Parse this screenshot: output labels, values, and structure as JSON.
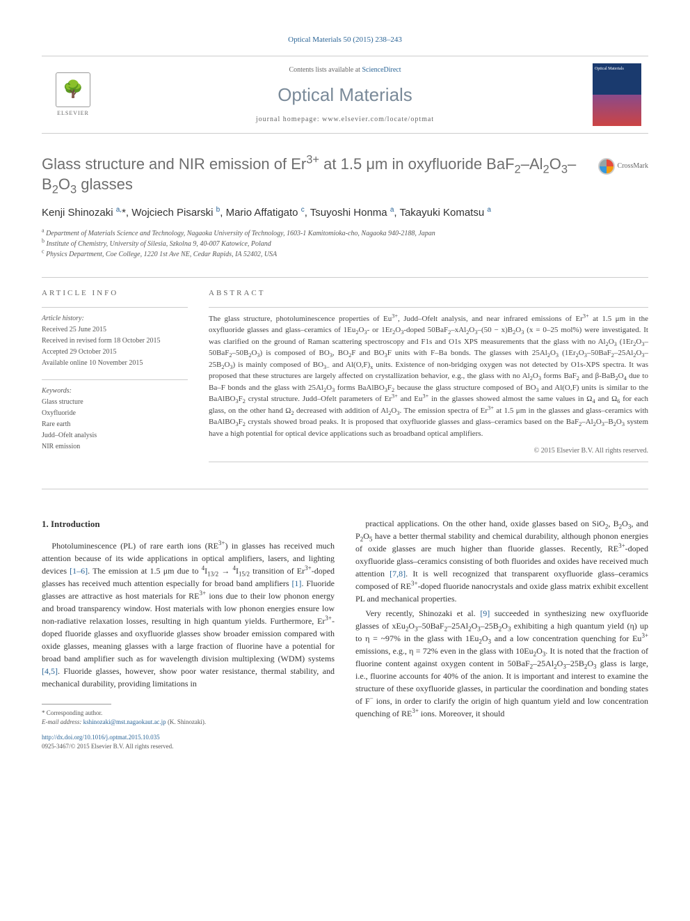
{
  "journal_ref": "Optical Materials 50 (2015) 238–243",
  "header": {
    "contents_prefix": "Contents lists available at ",
    "sciencedirect": "ScienceDirect",
    "journal_name": "Optical Materials",
    "homepage_prefix": "journal homepage: ",
    "homepage_url": "www.elsevier.com/locate/optmat",
    "elsevier": "ELSEVIER"
  },
  "crossmark": "CrossMark",
  "title_html": "Glass structure and NIR emission of Er<sup>3+</sup> at 1.5 μm in oxyfluoride BaF<sub>2</sub>–Al<sub>2</sub>O<sub>3</sub>–B<sub>2</sub>O<sub>3</sub> glasses",
  "authors_html": "Kenji Shinozaki <sup>a,</sup>*, Wojciech Pisarski <sup>b</sup>, Mario Affatigato <sup>c</sup>, Tsuyoshi Honma <sup>a</sup>, Takayuki Komatsu <sup>a</sup>",
  "affiliations": [
    {
      "sup": "a",
      "text": "Department of Materials Science and Technology, Nagaoka University of Technology, 1603-1 Kamitomioka-cho, Nagaoka 940-2188, Japan"
    },
    {
      "sup": "b",
      "text": "Institute of Chemistry, University of Silesia, Szkolna 9, 40-007 Katowice, Poland"
    },
    {
      "sup": "c",
      "text": "Physics Department, Coe College, 1220 1st Ave NE, Cedar Rapids, IA 52402, USA"
    }
  ],
  "article_info": {
    "heading": "ARTICLE INFO",
    "history_label": "Article history:",
    "history": [
      "Received 25 June 2015",
      "Received in revised form 18 October 2015",
      "Accepted 29 October 2015",
      "Available online 10 November 2015"
    ],
    "keywords_label": "Keywords:",
    "keywords": [
      "Glass structure",
      "Oxyfluoride",
      "Rare earth",
      "Judd–Ofelt analysis",
      "NIR emission"
    ]
  },
  "abstract": {
    "heading": "ABSTRACT",
    "text_html": "The glass structure, photoluminescence properties of Eu<sup>3+</sup>, Judd–Ofelt analysis, and near infrared emissions of Er<sup>3+</sup> at 1.5 μm in the oxyfluoride glasses and glass–ceramics of 1Eu<sub>2</sub>O<sub>3</sub>- or 1Er<sub>2</sub>O<sub>3</sub>-doped 50BaF<sub>2</sub>–xAl<sub>2</sub>O<sub>3</sub>–(50 − x)B<sub>2</sub>O<sub>3</sub> (x = 0–25 mol%) were investigated. It was clarified on the ground of Raman scattering spectroscopy and F1s and O1s XPS measurements that the glass with no Al<sub>2</sub>O<sub>3</sub> (1Er<sub>2</sub>O<sub>3</sub>–50BaF<sub>2</sub>–50B<sub>2</sub>O<sub>3</sub>) is composed of BO<sub>3</sub>, BO<sub>2</sub>F and BO<sub>3</sub>F units with F–Ba bonds. The glasses with 25Al<sub>2</sub>O<sub>3</sub> (1Er<sub>2</sub>O<sub>3</sub>–50BaF<sub>2</sub>–25Al<sub>2</sub>O<sub>3</sub>–25B<sub>2</sub>O<sub>3</sub>) is mainly composed of BO<sub>3−</sub> and Al(O,F)<sub>x</sub> units. Existence of non-bridging oxygen was not detected by O1s-XPS spectra. It was proposed that these structures are largely affected on crystallization behavior, e.g., the glass with no Al<sub>2</sub>O<sub>3</sub> forms BaF<sub>2</sub> and β-BaB<sub>2</sub>O<sub>4</sub> due to Ba–F bonds and the glass with 25Al<sub>2</sub>O<sub>3</sub> forms BaAlBO<sub>3</sub>F<sub>2</sub> because the glass structure composed of BO<sub>3</sub> and Al(O,F) units is similar to the BaAlBO<sub>3</sub>F<sub>2</sub> crystal structure. Judd–Ofelt parameters of Er<sup>3+</sup> and Eu<sup>3+</sup> in the glasses showed almost the same values in Ω<sub>4</sub> and Ω<sub>6</sub> for each glass, on the other hand Ω<sub>2</sub> decreased with addition of Al<sub>2</sub>O<sub>3</sub>. The emission spectra of Er<sup>3+</sup> at 1.5 μm in the glasses and glass–ceramics with BaAlBO<sub>3</sub>F<sub>2</sub> crystals showed broad peaks. It is proposed that oxyfluoride glasses and glass–ceramics based on the BaF<sub>2</sub>–Al<sub>2</sub>O<sub>3</sub>–B<sub>2</sub>O<sub>3</sub> system have a high potential for optical device applications such as broadband optical amplifiers.",
    "copyright": "© 2015 Elsevier B.V. All rights reserved."
  },
  "section1": {
    "heading": "1. Introduction",
    "p1_html": "Photoluminescence (PL) of rare earth ions (RE<sup>3+</sup>) in glasses has received much attention because of its wide applications in optical amplifiers, lasers, and lighting devices <span class='ref-link'>[1–6]</span>. The emission at 1.5 μm due to <sup>4</sup>I<sub>13/2</sub> → <sup>4</sup>I<sub>15/2</sub> transition of Er<sup>3+</sup>-doped glasses has received much attention especially for broad band amplifiers <span class='ref-link'>[1]</span>. Fluoride glasses are attractive as host materials for RE<sup>3+</sup> ions due to their low phonon energy and broad transparency window. Host materials with low phonon energies ensure low non-radiative relaxation losses, resulting in high quantum yields. Furthermore, Er<sup>3+</sup>-doped fluoride glasses and oxyfluoride glasses show broader emission compared with oxide glasses, meaning glasses with a large fraction of fluorine have a potential for broad band amplifier such as for wavelength division multiplexing (WDM) systems <span class='ref-link'>[4,5]</span>. Fluoride glasses, however, show poor water resistance, thermal stability, and mechanical durability, providing limitations in",
    "p2_html": "practical applications. On the other hand, oxide glasses based on SiO<sub>2</sub>, B<sub>2</sub>O<sub>3</sub>, and P<sub>2</sub>O<sub>5</sub> have a better thermal stability and chemical durability, although phonon energies of oxide glasses are much higher than fluoride glasses. Recently, RE<sup>3+</sup>-doped oxyfluoride glass–ceramics consisting of both fluorides and oxides have received much attention <span class='ref-link'>[7,8]</span>. It is well recognized that transparent oxyfluoride glass–ceramics composed of RE<sup>3+</sup>-doped fluoride nanocrystals and oxide glass matrix exhibit excellent PL and mechanical properties.",
    "p3_html": "Very recently, Shinozaki et al. <span class='ref-link'>[9]</span> succeeded in synthesizing new oxyfluoride glasses of xEu<sub>2</sub>O<sub>3</sub>–50BaF<sub>2</sub>–25Al<sub>2</sub>O<sub>3</sub>–25B<sub>2</sub>O<sub>3</sub> exhibiting a high quantum yield (η) up to η = ~97% in the glass with 1Eu<sub>2</sub>O<sub>3</sub> and a low concentration quenching for Eu<sup>3+</sup> emissions, e.g., η = 72% even in the glass with 10Eu<sub>2</sub>O<sub>3</sub>. It is noted that the fraction of fluorine content against oxygen content in 50BaF<sub>2</sub>–25Al<sub>2</sub>O<sub>3</sub>–25B<sub>2</sub>O<sub>3</sub> glass is large, i.e., fluorine accounts for 40% of the anion. It is important and interest to examine the structure of these oxyfluoride glasses, in particular the coordination and bonding states of F<sup>−</sup> ions, in order to clarify the origin of high quantum yield and low concentration quenching of RE<sup>3+</sup> ions. Moreover, it should"
  },
  "footnote": {
    "corr": "* Corresponding author.",
    "email_label": "E-mail address:",
    "email": "kshinozaki@mst.nagaokaut.ac.jp",
    "email_name": "(K. Shinozaki)."
  },
  "doi": {
    "url": "http://dx.doi.org/10.1016/j.optmat.2015.10.035",
    "issn": "0925-3467/© 2015 Elsevier B.V. All rights reserved."
  }
}
